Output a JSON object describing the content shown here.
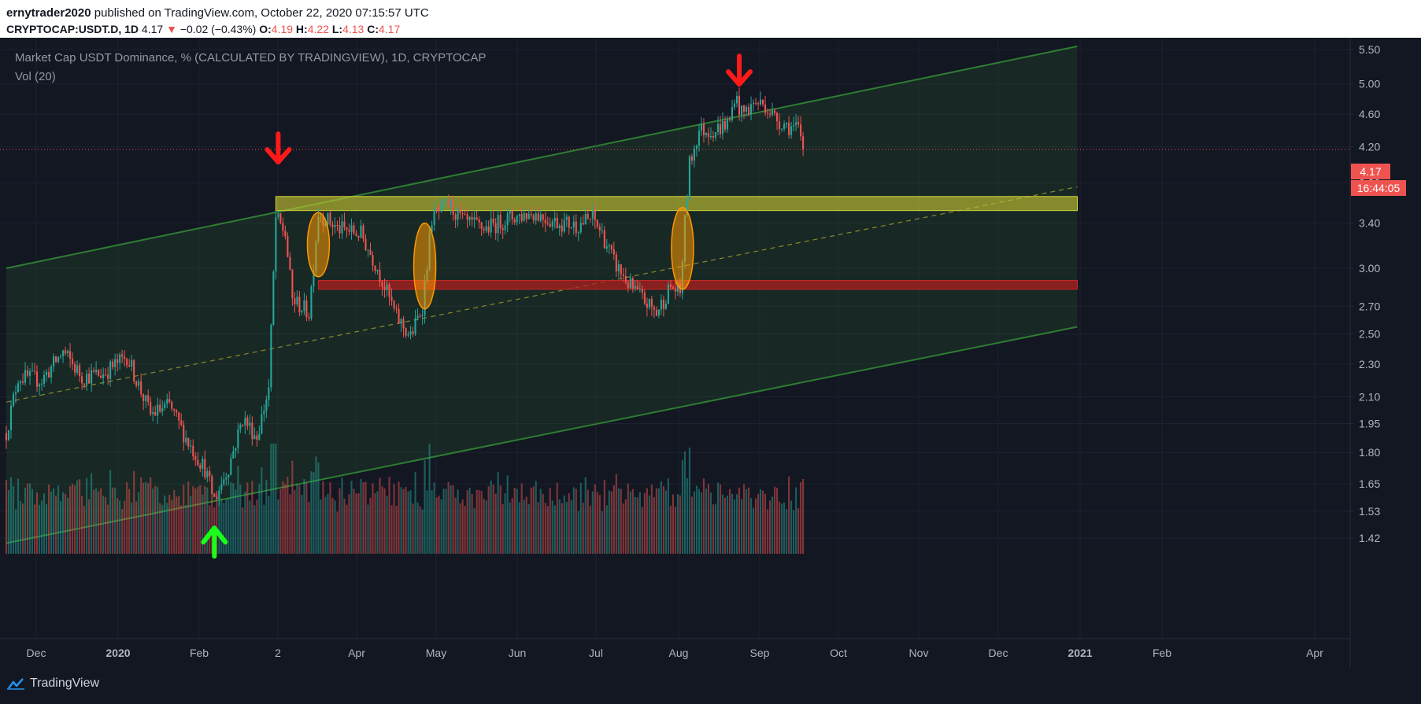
{
  "header": {
    "author": "ernytrader2020",
    "published_text": "published on TradingView.com, October 22, 2020 07:15:57 UTC",
    "symbol": "CRYPTOCAP:USDT.D, 1D",
    "last": "4.17",
    "change_arrow": "▼",
    "change": "−0.02 (−0.43%)",
    "o_label": "O:",
    "o_value": "4.19",
    "h_label": "H:",
    "h_value": "4.22",
    "l_label": "L:",
    "l_value": "4.13",
    "c_label": "C:",
    "c_value": "4.17"
  },
  "legend": {
    "title": "Market Cap USDT Dominance, % (CALCULATED BY TRADINGVIEW), 1D, CRYPTOCAP",
    "indicator": "Vol (20)"
  },
  "price_label": "4.17",
  "countdown_label": "16:44:05",
  "footer": {
    "brand": "TradingView"
  },
  "colors": {
    "background": "#131722",
    "up": "#26a69a",
    "down": "#ef5350",
    "channel_line": "#2e7d32",
    "yellow_zone": "#c8c832",
    "red_zone": "#b71c1c",
    "ellipse": "#ff9800"
  },
  "chart_data": {
    "type": "candlestick",
    "scale": "log",
    "y_ticks": [
      "5.50",
      "5.00",
      "4.60",
      "4.20",
      "3.80",
      "3.40",
      "3.00",
      "2.70",
      "2.50",
      "2.30",
      "2.10",
      "1.95",
      "1.80",
      "1.65",
      "1.53",
      "1.42"
    ],
    "x_ticks": [
      "Dec",
      "2020",
      "Feb",
      "2",
      "Apr",
      "May",
      "Jun",
      "Jul",
      "Aug",
      "Sep",
      "Oct",
      "Nov",
      "Dec",
      "2021",
      "Feb",
      "Apr"
    ],
    "date_range": [
      "2019-11-20",
      "2020-10-22"
    ],
    "anchors": [
      {
        "date": "2019-11-20",
        "close": 1.9
      },
      {
        "date": "2019-11-25",
        "close": 2.22
      },
      {
        "date": "2019-12-05",
        "close": 2.2
      },
      {
        "date": "2019-12-14",
        "close": 2.38
      },
      {
        "date": "2019-12-22",
        "close": 2.22
      },
      {
        "date": "2019-12-31",
        "close": 2.24
      },
      {
        "date": "2020-01-10",
        "close": 2.35
      },
      {
        "date": "2020-01-20",
        "close": 2.0
      },
      {
        "date": "2020-01-28",
        "close": 2.05
      },
      {
        "date": "2020-02-05",
        "close": 1.85
      },
      {
        "date": "2020-02-12",
        "close": 1.72
      },
      {
        "date": "2020-02-16",
        "close": 1.58
      },
      {
        "date": "2020-02-22",
        "close": 1.73
      },
      {
        "date": "2020-02-28",
        "close": 1.98
      },
      {
        "date": "2020-03-05",
        "close": 1.88
      },
      {
        "date": "2020-03-10",
        "close": 2.15
      },
      {
        "date": "2020-03-13",
        "close": 3.45
      },
      {
        "date": "2020-03-17",
        "close": 3.3
      },
      {
        "date": "2020-03-20",
        "close": 2.75
      },
      {
        "date": "2020-03-27",
        "close": 2.65
      },
      {
        "date": "2020-03-31",
        "close": 3.5
      },
      {
        "date": "2020-04-08",
        "close": 3.35
      },
      {
        "date": "2020-04-18",
        "close": 3.3
      },
      {
        "date": "2020-04-25",
        "close": 3.0
      },
      {
        "date": "2020-05-03",
        "close": 2.62
      },
      {
        "date": "2020-05-09",
        "close": 2.48
      },
      {
        "date": "2020-05-14",
        "close": 2.7
      },
      {
        "date": "2020-05-18",
        "close": 3.45
      },
      {
        "date": "2020-05-25",
        "close": 3.58
      },
      {
        "date": "2020-06-01",
        "close": 3.4
      },
      {
        "date": "2020-06-10",
        "close": 3.35
      },
      {
        "date": "2020-06-20",
        "close": 3.45
      },
      {
        "date": "2020-06-30",
        "close": 3.5
      },
      {
        "date": "2020-07-08",
        "close": 3.42
      },
      {
        "date": "2020-07-18",
        "close": 3.38
      },
      {
        "date": "2020-07-25",
        "close": 3.45
      },
      {
        "date": "2020-07-29",
        "close": 3.3
      },
      {
        "date": "2020-08-03",
        "close": 3.05
      },
      {
        "date": "2020-08-10",
        "close": 2.85
      },
      {
        "date": "2020-08-17",
        "close": 2.72
      },
      {
        "date": "2020-08-21",
        "close": 2.65
      },
      {
        "date": "2020-08-27",
        "close": 2.85
      },
      {
        "date": "2020-08-31",
        "close": 2.8
      },
      {
        "date": "2020-09-02",
        "close": 3.4
      },
      {
        "date": "2020-09-04",
        "close": 4.0
      },
      {
        "date": "2020-09-08",
        "close": 4.4
      },
      {
        "date": "2020-09-15",
        "close": 4.4
      },
      {
        "date": "2020-09-21",
        "close": 4.5
      },
      {
        "date": "2020-09-23",
        "close": 4.85
      },
      {
        "date": "2020-09-26",
        "close": 4.6
      },
      {
        "date": "2020-10-02",
        "close": 4.75
      },
      {
        "date": "2020-10-06",
        "close": 4.72
      },
      {
        "date": "2020-10-10",
        "close": 4.55
      },
      {
        "date": "2020-10-16",
        "close": 4.45
      },
      {
        "date": "2020-10-20",
        "close": 4.4
      },
      {
        "date": "2020-10-22",
        "close": 4.17
      }
    ],
    "drawings": {
      "channel_upper": [
        {
          "date": "2019-11-20",
          "price": 3.0
        },
        {
          "date": "2021-02-15",
          "price": 5.55
        }
      ],
      "channel_lower": [
        {
          "date": "2019-11-20",
          "price": 1.4
        },
        {
          "date": "2021-02-15",
          "price": 2.55
        }
      ],
      "channel_mid": [
        {
          "date": "2019-11-20",
          "price": 2.07
        },
        {
          "date": "2021-02-15",
          "price": 3.76
        }
      ],
      "resistance_zone": {
        "from": "2020-03-13",
        "to": "2021-02-15",
        "top": 3.66,
        "bottom": 3.52
      },
      "support_zone": {
        "from": "2020-03-31",
        "to": "2021-02-15",
        "top": 2.9,
        "bottom": 2.83
      },
      "ellipses": [
        {
          "date": "2020-03-31",
          "top": 3.5,
          "bottom": 2.93
        },
        {
          "date": "2020-05-15",
          "top": 3.4,
          "bottom": 2.68
        },
        {
          "date": "2020-09-01",
          "top": 3.55,
          "bottom": 2.83
        }
      ],
      "down_arrows": [
        {
          "date": "2020-03-14",
          "price": 4.15
        },
        {
          "date": "2020-09-25",
          "price": 5.15
        }
      ],
      "up_arrows": [
        {
          "date": "2020-02-16",
          "price": 1.41
        }
      ]
    }
  }
}
